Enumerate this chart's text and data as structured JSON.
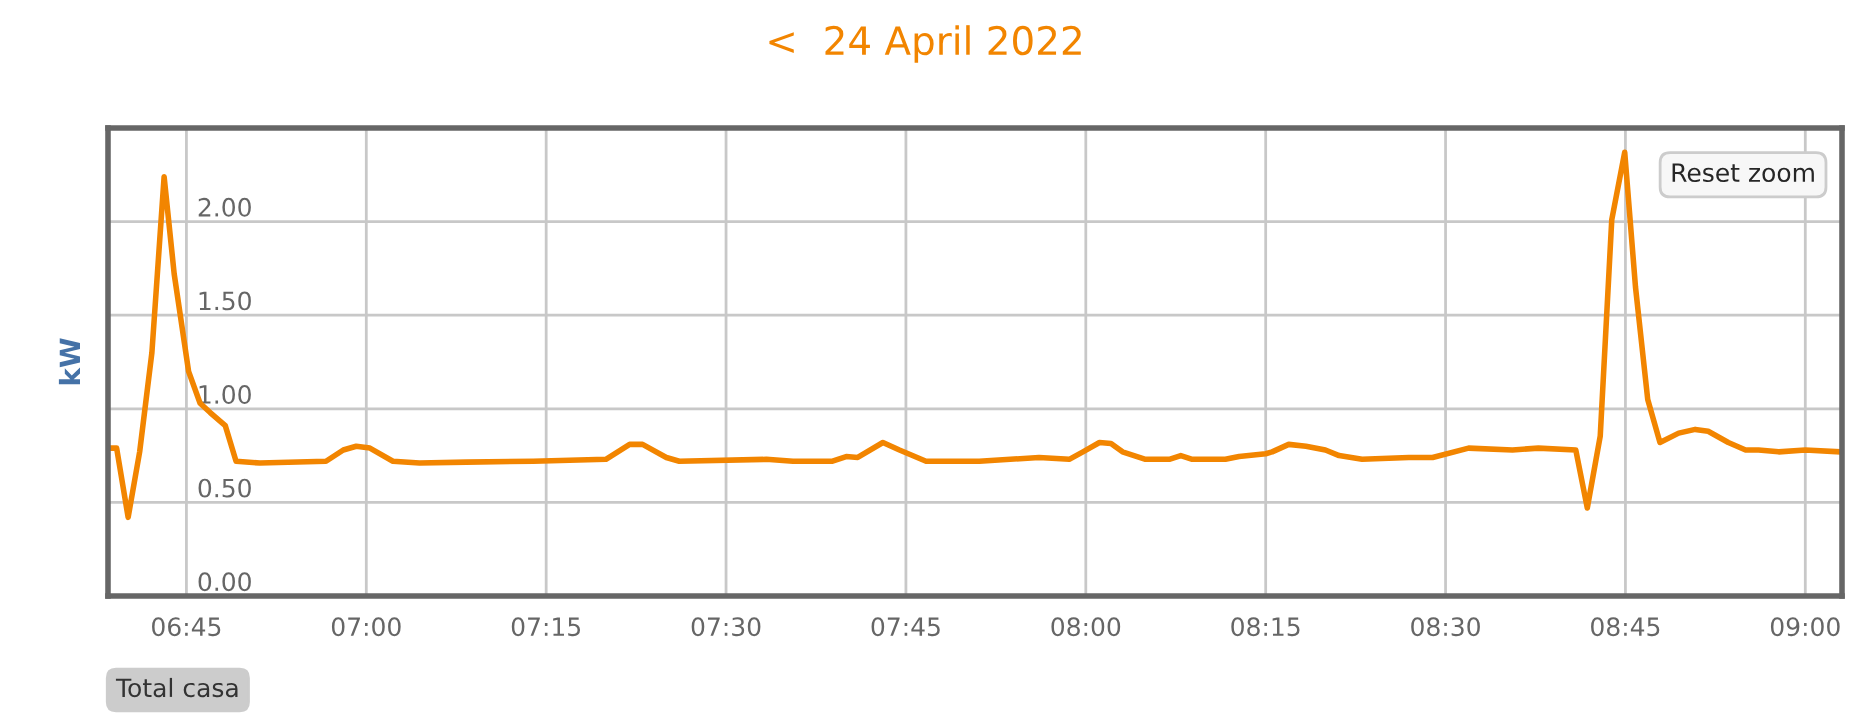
{
  "chart_data": {
    "type": "line",
    "title": "<  24 April 2022",
    "ylabel": "kW",
    "annotations": [
      "Reset zoom",
      "Total casa"
    ],
    "x": [
      6.641,
      6.653,
      6.669,
      6.685,
      6.702,
      6.719,
      6.733,
      6.753,
      6.769,
      6.783,
      6.804,
      6.819,
      6.852,
      6.944,
      6.968,
      6.986,
      7.005,
      7.037,
      7.074,
      7.139,
      7.232,
      7.333,
      7.366,
      7.384,
      7.417,
      7.435,
      7.556,
      7.593,
      7.648,
      7.667,
      7.683,
      7.718,
      7.741,
      7.778,
      7.852,
      7.935,
      7.977,
      7.996,
      8.019,
      8.035,
      8.051,
      8.083,
      8.116,
      8.132,
      8.148,
      8.194,
      8.213,
      8.25,
      8.259,
      8.282,
      8.306,
      8.333,
      8.352,
      8.384,
      8.449,
      8.482,
      8.532,
      8.593,
      8.629,
      8.681,
      8.697,
      8.715,
      8.731,
      8.749,
      8.764,
      8.781,
      8.798,
      8.824,
      8.847,
      8.865,
      8.893,
      8.917,
      8.935,
      8.963,
      9.0,
      9.049
    ],
    "series": [
      {
        "color": "#f28500",
        "values": [
          0.79,
          0.79,
          0.42,
          0.77,
          1.3,
          2.24,
          1.72,
          1.2,
          1.03,
          0.98,
          0.91,
          0.72,
          0.71,
          0.72,
          0.78,
          0.8,
          0.79,
          0.72,
          0.71,
          0.715,
          0.72,
          0.73,
          0.81,
          0.81,
          0.74,
          0.72,
          0.73,
          0.72,
          0.72,
          0.745,
          0.74,
          0.82,
          0.78,
          0.72,
          0.72,
          0.74,
          0.73,
          0.77,
          0.82,
          0.815,
          0.77,
          0.73,
          0.73,
          0.75,
          0.73,
          0.73,
          0.745,
          0.76,
          0.77,
          0.81,
          0.8,
          0.78,
          0.75,
          0.73,
          0.74,
          0.74,
          0.79,
          0.78,
          0.79,
          0.78,
          0.47,
          0.855,
          2.01,
          2.37,
          1.65,
          1.05,
          0.82,
          0.87,
          0.89,
          0.88,
          0.82,
          0.78,
          0.78,
          0.77,
          0.78,
          0.77
        ]
      }
    ],
    "xlim": [
      6.641,
      9.051
    ],
    "ylim": [
      0,
      2.5
    ],
    "xticks": [
      {
        "value": 6.75,
        "label": "06:45"
      },
      {
        "value": 7,
        "label": "07:00"
      },
      {
        "value": 7.25,
        "label": "07:15"
      },
      {
        "value": 7.5,
        "label": "07:30"
      },
      {
        "value": 7.75,
        "label": "07:45"
      },
      {
        "value": 8,
        "label": "08:00"
      },
      {
        "value": 8.25,
        "label": "08:15"
      },
      {
        "value": 8.5,
        "label": "08:30"
      },
      {
        "value": 8.75,
        "label": "08:45"
      },
      {
        "value": 9,
        "label": "09:00"
      }
    ],
    "yticks": [
      {
        "value": 0,
        "label": "0.00"
      },
      {
        "value": 0.5,
        "label": "0.50"
      },
      {
        "value": 1,
        "label": "1.00"
      },
      {
        "value": 1.5,
        "label": "1.50"
      },
      {
        "value": 2,
        "label": "2.00"
      }
    ],
    "grid": true,
    "legend": false,
    "marker": "none",
    "line_style": "solid"
  }
}
